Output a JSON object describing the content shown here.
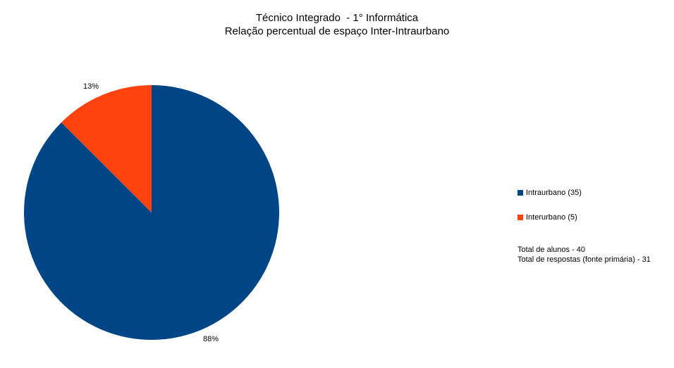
{
  "chart_data": {
    "type": "pie",
    "title": "Técnico Integrado  - 1° Informática",
    "subtitle": "Relação percentual de espaço Inter-Intraurbano",
    "slices": [
      {
        "name": "Intraurbano (35)",
        "value": 35,
        "label": "88%",
        "color": "#004586"
      },
      {
        "name": "Interurbano (5)",
        "value": 5,
        "label": "13%",
        "color": "#ff420e"
      }
    ],
    "legend_position": "right"
  },
  "notes": {
    "line1": "Total de alunos - 40",
    "line2": "Total de respostas (fonte primária) - 31"
  }
}
